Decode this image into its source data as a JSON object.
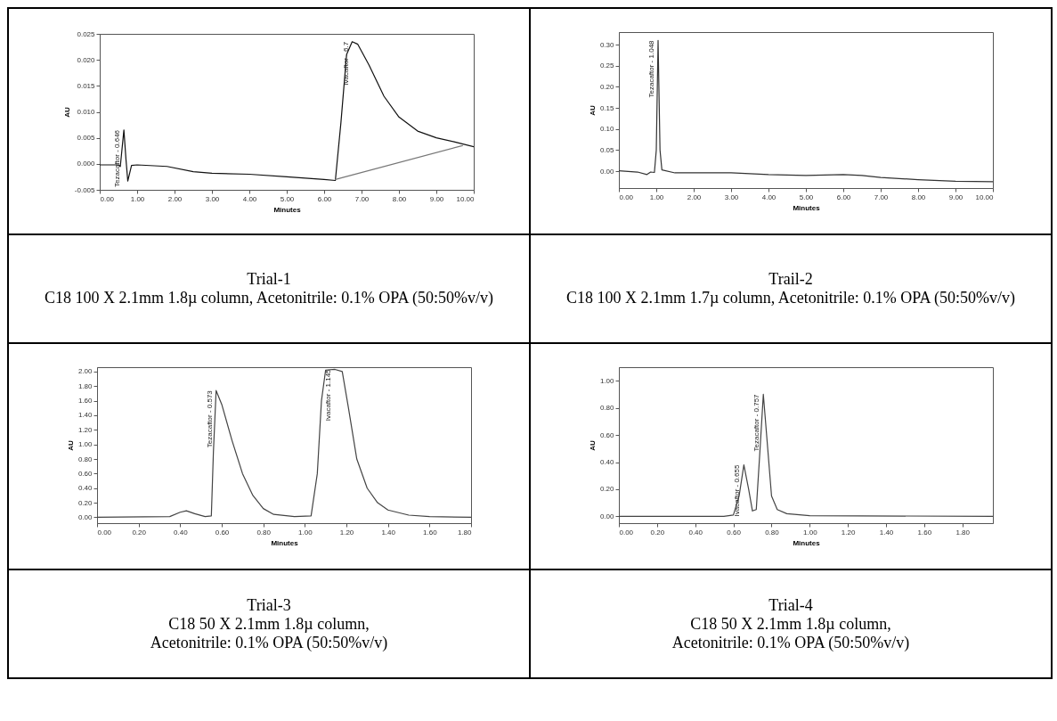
{
  "chart_data": [
    {
      "type": "line",
      "xlabel": "Minutes",
      "ylabel": "AU",
      "xlim": [
        0,
        10
      ],
      "ylim": [
        -0.005,
        0.025
      ],
      "xticks": [
        {
          "value": 0,
          "label": "0.00"
        },
        {
          "value": 1,
          "label": "1.00"
        },
        {
          "value": 2,
          "label": "2.00"
        },
        {
          "value": 3,
          "label": "3.00"
        },
        {
          "value": 4,
          "label": "4.00"
        },
        {
          "value": 5,
          "label": "5.00"
        },
        {
          "value": 6,
          "label": "6.00"
        },
        {
          "value": 7,
          "label": "7.00"
        },
        {
          "value": 8,
          "label": "8.00"
        },
        {
          "value": 9,
          "label": "9.00"
        },
        {
          "value": 10,
          "label": "10.00"
        }
      ],
      "yticks": [
        {
          "value": -0.005,
          "label": "-0.005"
        },
        {
          "value": 0,
          "label": "0.000"
        },
        {
          "value": 0.005,
          "label": "0.005"
        },
        {
          "value": 0.01,
          "label": "0.010"
        },
        {
          "value": 0.015,
          "label": "0.015"
        },
        {
          "value": 0.02,
          "label": "0.020"
        },
        {
          "value": 0.025,
          "label": "0.025"
        }
      ],
      "series": [
        {
          "color": "#111111",
          "x": [
            0,
            0.5,
            0.55,
            0.646,
            0.7,
            0.75,
            0.85,
            1.0,
            1.8,
            2.5,
            3.0,
            4.0,
            5.0,
            6.0,
            6.3,
            6.45,
            6.6,
            6.75,
            6.9,
            7.2,
            7.6,
            8.0,
            8.5,
            9.0,
            9.5,
            10
          ],
          "values": [
            -0.0002,
            -0.0002,
            -0.0005,
            0.0065,
            0.001,
            -0.0033,
            -0.0003,
            -0.0002,
            -0.0005,
            -0.0015,
            -0.0018,
            -0.002,
            -0.0025,
            -0.003,
            -0.0032,
            0.008,
            0.021,
            0.0235,
            0.023,
            0.019,
            0.013,
            0.009,
            0.0063,
            0.005,
            0.0042,
            0.0033
          ]
        },
        {
          "color": "#777777",
          "x": [
            6.3,
            9.7
          ],
          "values": [
            -0.003,
            0.0035
          ]
        }
      ],
      "annotations": [
        {
          "text": "Tezacaftor - 0.646",
          "x": 0.646,
          "y": 0.0065
        },
        {
          "text": "Ivacaftor - 6.7",
          "x": 6.75,
          "y": 0.0235
        },
        "Trial-1",
        "C18 100 X 2.1mm 1.8µ column, Acetonitrile: 0.1% OPA (50:50%v/v)"
      ]
    },
    {
      "type": "line",
      "xlabel": "Minutes",
      "ylabel": "AU",
      "xlim": [
        0,
        10
      ],
      "ylim": [
        -0.04,
        0.33
      ],
      "xticks": [
        {
          "value": 0,
          "label": "0.00"
        },
        {
          "value": 1,
          "label": "1.00"
        },
        {
          "value": 2,
          "label": "2.00"
        },
        {
          "value": 3,
          "label": "3.00"
        },
        {
          "value": 4,
          "label": "4.00"
        },
        {
          "value": 5,
          "label": "5.00"
        },
        {
          "value": 6,
          "label": "6.00"
        },
        {
          "value": 7,
          "label": "7.00"
        },
        {
          "value": 8,
          "label": "8.00"
        },
        {
          "value": 9,
          "label": "9.00"
        },
        {
          "value": 10,
          "label": "10.00"
        }
      ],
      "yticks": [
        {
          "value": 0,
          "label": "0.00"
        },
        {
          "value": 0.05,
          "label": "0.05"
        },
        {
          "value": 0.1,
          "label": "0.10"
        },
        {
          "value": 0.15,
          "label": "0.15"
        },
        {
          "value": 0.2,
          "label": "0.20"
        },
        {
          "value": 0.25,
          "label": "0.25"
        },
        {
          "value": 0.3,
          "label": "0.30"
        }
      ],
      "series": [
        {
          "color": "#333333",
          "x": [
            0,
            0.5,
            0.75,
            0.85,
            0.95,
            1.0,
            1.048,
            1.1,
            1.15,
            1.5,
            2,
            3,
            4,
            5,
            6,
            6.5,
            7,
            8,
            9,
            10
          ],
          "values": [
            0.001,
            -0.002,
            -0.008,
            -0.002,
            -0.003,
            0.05,
            0.31,
            0.05,
            0.003,
            -0.004,
            -0.004,
            -0.004,
            -0.008,
            -0.01,
            -0.008,
            -0.01,
            -0.015,
            -0.02,
            -0.024,
            -0.025
          ]
        }
      ],
      "annotations": [
        {
          "text": "Tezacaftor - 1.048",
          "x": 1.048,
          "y": 0.31
        },
        "Trail-2",
        "C18 100 X 2.1mm 1.7µ column,  Acetonitrile: 0.1% OPA (50:50%v/v)"
      ]
    },
    {
      "type": "line",
      "xlabel": "Minutes",
      "ylabel": "AU",
      "xlim": [
        0,
        1.8
      ],
      "ylim": [
        -0.08,
        2.06
      ],
      "xticks": [
        {
          "value": 0,
          "label": "0.00"
        },
        {
          "value": 0.2,
          "label": "0.20"
        },
        {
          "value": 0.4,
          "label": "0.40"
        },
        {
          "value": 0.6,
          "label": "0.60"
        },
        {
          "value": 0.8,
          "label": "0.80"
        },
        {
          "value": 1,
          "label": "1.00"
        },
        {
          "value": 1.2,
          "label": "1.20"
        },
        {
          "value": 1.4,
          "label": "1.40"
        },
        {
          "value": 1.6,
          "label": "1.60"
        },
        {
          "value": 1.8,
          "label": "1.80"
        }
      ],
      "yticks": [
        {
          "value": 0,
          "label": "0.00"
        },
        {
          "value": 0.2,
          "label": "0.20"
        },
        {
          "value": 0.4,
          "label": "0.40"
        },
        {
          "value": 0.6,
          "label": "0.60"
        },
        {
          "value": 0.8,
          "label": "0.80"
        },
        {
          "value": 1,
          "label": "1.00"
        },
        {
          "value": 1.2,
          "label": "1.20"
        },
        {
          "value": 1.4,
          "label": "1.40"
        },
        {
          "value": 1.6,
          "label": "1.60"
        },
        {
          "value": 1.8,
          "label": "1.80"
        },
        {
          "value": 2,
          "label": "2.00"
        }
      ],
      "series": [
        {
          "color": "#444444",
          "x": [
            0,
            0.35,
            0.4,
            0.43,
            0.47,
            0.52,
            0.55,
            0.56,
            0.573,
            0.6,
            0.65,
            0.7,
            0.75,
            0.8,
            0.85,
            0.95,
            1.03,
            1.06,
            1.08,
            1.1,
            1.145,
            1.18,
            1.21,
            1.25,
            1.3,
            1.35,
            1.4,
            1.5,
            1.6,
            1.8
          ],
          "values": [
            0,
            0.01,
            0.07,
            0.09,
            0.05,
            0.01,
            0.02,
            0.9,
            1.74,
            1.55,
            1.05,
            0.6,
            0.3,
            0.12,
            0.04,
            0.01,
            0.02,
            0.6,
            1.6,
            2.02,
            2.03,
            2.0,
            1.5,
            0.8,
            0.4,
            0.2,
            0.1,
            0.03,
            0.01,
            0
          ]
        }
      ],
      "annotations": [
        {
          "text": "Tezacaftor - 0.573",
          "x": 0.573,
          "y": 1.74
        },
        {
          "text": "Ivacaftor - 1.145",
          "x": 1.145,
          "y": 2.03
        },
        "Trial-3",
        "C18 50 X 2.1mm 1.8µ column,",
        "Acetonitrile: 0.1% OPA (50:50%v/v)"
      ]
    },
    {
      "type": "line",
      "xlabel": "Minutes",
      "ylabel": "AU",
      "xlim": [
        0,
        1.96
      ],
      "ylim": [
        -0.05,
        1.1
      ],
      "xticks": [
        {
          "value": 0,
          "label": "0.00"
        },
        {
          "value": 0.2,
          "label": "0.20"
        },
        {
          "value": 0.4,
          "label": "0.40"
        },
        {
          "value": 0.6,
          "label": "0.60"
        },
        {
          "value": 0.8,
          "label": "0.80"
        },
        {
          "value": 1,
          "label": "1.00"
        },
        {
          "value": 1.2,
          "label": "1.20"
        },
        {
          "value": 1.4,
          "label": "1.40"
        },
        {
          "value": 1.6,
          "label": "1.60"
        },
        {
          "value": 1.8,
          "label": "1.80"
        }
      ],
      "yticks": [
        {
          "value": 0,
          "label": "0.00"
        },
        {
          "value": 0.2,
          "label": "0.20"
        },
        {
          "value": 0.4,
          "label": "0.40"
        },
        {
          "value": 0.6,
          "label": "0.60"
        },
        {
          "value": 0.8,
          "label": "0.80"
        },
        {
          "value": 1,
          "label": "1.00"
        }
      ],
      "series": [
        {
          "color": "#444444",
          "x": [
            0,
            0.55,
            0.6,
            0.63,
            0.655,
            0.68,
            0.7,
            0.72,
            0.74,
            0.757,
            0.78,
            0.8,
            0.83,
            0.88,
            1.0,
            1.96
          ],
          "values": [
            0,
            0,
            0.01,
            0.15,
            0.38,
            0.2,
            0.04,
            0.05,
            0.5,
            0.9,
            0.5,
            0.15,
            0.05,
            0.02,
            0.005,
            0
          ]
        }
      ],
      "annotations": [
        {
          "text": "Ivacaftor - 0.655",
          "x": 0.655,
          "y": 0.38
        },
        {
          "text": "Tezacaftor - 0.757",
          "x": 0.757,
          "y": 0.9
        },
        "Trial-4",
        "C18 50 X 2.1mm 1.8µ column,",
        "Acetonitrile: 0.1% OPA (50:50%v/v)"
      ]
    }
  ]
}
